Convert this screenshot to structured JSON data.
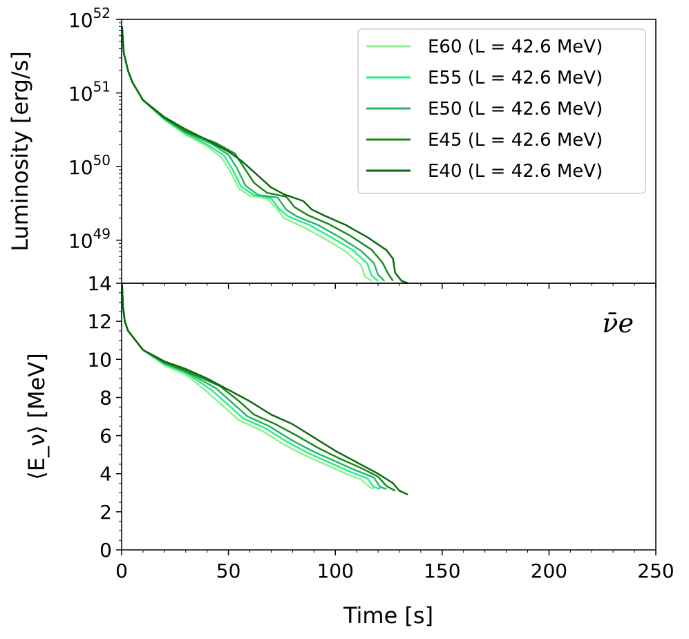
{
  "chart_data": [
    {
      "type": "line",
      "panel": "top",
      "xlabel": "",
      "ylabel": "Luminosity [erg/s]",
      "yscale": "log",
      "xlim": [
        0,
        250
      ],
      "ylim": [
        2.6e+48,
        1e+52
      ],
      "yticks": [
        {
          "base": "10",
          "exp": "52",
          "value": 1e+52
        },
        {
          "base": "10",
          "exp": "51",
          "value": 1e+51
        },
        {
          "base": "10",
          "exp": "50",
          "value": 1e+50
        },
        {
          "base": "10",
          "exp": "49",
          "value": 1e+49
        }
      ],
      "legend_position": "top-right",
      "series": [
        {
          "name": "E60 (L = 42.6 MeV)",
          "color": "#8ef08e",
          "points": [
            [
              0.2,
              8e+51
            ],
            [
              1,
              3.5e+51
            ],
            [
              3,
              2e+51
            ],
            [
              5,
              1.4e+51
            ],
            [
              10,
              8e+50
            ],
            [
              20,
              4.3e+50
            ],
            [
              30,
              2.7e+50
            ],
            [
              40,
              1.9e+50
            ],
            [
              47,
              1.3e+50
            ],
            [
              51,
              8.5e+49
            ],
            [
              55,
              5e+49
            ],
            [
              60,
              4e+49
            ],
            [
              68,
              3.7e+49
            ],
            [
              72,
              2.8e+49
            ],
            [
              76,
              2e+49
            ],
            [
              85,
              1.5e+49
            ],
            [
              95,
              1.05e+49
            ],
            [
              105,
              7e+48
            ],
            [
              112,
              4.6e+48
            ],
            [
              114,
              3.2e+48
            ],
            [
              117,
              2.8e+48
            ]
          ]
        },
        {
          "name": "E55 (L = 42.6 MeV)",
          "color": "#26ee8a",
          "points": [
            [
              0.2,
              8e+51
            ],
            [
              1,
              3.5e+51
            ],
            [
              3,
              2e+51
            ],
            [
              5,
              1.4e+51
            ],
            [
              10,
              8e+50
            ],
            [
              20,
              4.4e+50
            ],
            [
              30,
              2.8e+50
            ],
            [
              40,
              2e+50
            ],
            [
              48,
              1.4e+50
            ],
            [
              52,
              9e+49
            ],
            [
              56,
              5.3e+49
            ],
            [
              62,
              4.1e+49
            ],
            [
              70,
              3.7e+49
            ],
            [
              74,
              2.6e+49
            ],
            [
              78,
              2.1e+49
            ],
            [
              88,
              1.6e+49
            ],
            [
              98,
              1.1e+49
            ],
            [
              108,
              7.4e+48
            ],
            [
              115,
              4.8e+48
            ],
            [
              117,
              3.3e+48
            ],
            [
              120,
              2.8e+48
            ]
          ]
        },
        {
          "name": "E50 (L = 42.6 MeV)",
          "color": "#2bb36b",
          "points": [
            [
              0.2,
              8e+51
            ],
            [
              1,
              3.5e+51
            ],
            [
              3,
              2e+51
            ],
            [
              5,
              1.4e+51
            ],
            [
              10,
              8e+50
            ],
            [
              20,
              4.5e+50
            ],
            [
              30,
              2.9e+50
            ],
            [
              42,
              2.05e+50
            ],
            [
              50,
              1.45e+50
            ],
            [
              54,
              9.5e+49
            ],
            [
              58,
              5.5e+49
            ],
            [
              64,
              4.1e+49
            ],
            [
              73,
              3.8e+49
            ],
            [
              77,
              2.6e+49
            ],
            [
              82,
              2.1e+49
            ],
            [
              92,
              1.6e+49
            ],
            [
              102,
              1.1e+49
            ],
            [
              112,
              7.2e+48
            ],
            [
              118,
              4.9e+48
            ],
            [
              120,
              3.4e+48
            ],
            [
              123,
              2.8e+48
            ]
          ]
        },
        {
          "name": "E45 (L = 42.6 MeV)",
          "color": "#1a8a1a",
          "points": [
            [
              0.2,
              8e+51
            ],
            [
              1,
              3.5e+51
            ],
            [
              3,
              2e+51
            ],
            [
              5,
              1.4e+51
            ],
            [
              10,
              8e+50
            ],
            [
              20,
              4.6e+50
            ],
            [
              30,
              3e+50
            ],
            [
              44,
              2.1e+50
            ],
            [
              53,
              1.5e+50
            ],
            [
              57,
              1e+50
            ],
            [
              62,
              6e+49
            ],
            [
              68,
              4.4e+49
            ],
            [
              77,
              3.9e+49
            ],
            [
              81,
              2.8e+49
            ],
            [
              87,
              2.2e+49
            ],
            [
              97,
              1.65e+49
            ],
            [
              107,
              1.15e+49
            ],
            [
              117,
              7.4e+48
            ],
            [
              122,
              5e+48
            ],
            [
              125,
              3.4e+48
            ],
            [
              127,
              2.8e+48
            ]
          ]
        },
        {
          "name": "E40 (L = 42.6 MeV)",
          "color": "#0a6a10",
          "points": [
            [
              0.2,
              8e+51
            ],
            [
              1,
              3.5e+51
            ],
            [
              3,
              2e+51
            ],
            [
              5,
              1.4e+51
            ],
            [
              10,
              8e+50
            ],
            [
              20,
              4.7e+50
            ],
            [
              30,
              3.2e+50
            ],
            [
              40,
              2.3e+50
            ],
            [
              50,
              1.6e+50
            ],
            [
              56,
              1.2e+50
            ],
            [
              60,
              9.5e+49
            ],
            [
              65,
              7e+49
            ],
            [
              70,
              5.2e+49
            ],
            [
              76,
              4.2e+49
            ],
            [
              85,
              3.4e+49
            ],
            [
              89,
              2.6e+49
            ],
            [
              95,
              2.15e+49
            ],
            [
              105,
              1.6e+49
            ],
            [
              115,
              1.1e+49
            ],
            [
              124,
              7.3e+48
            ],
            [
              127,
              5.6e+48
            ],
            [
              128,
              3.6e+48
            ],
            [
              131,
              2.8e+48
            ],
            [
              134,
              2.6e+48
            ]
          ]
        }
      ]
    },
    {
      "type": "line",
      "panel": "bottom",
      "xlabel": "Time [s]",
      "ylabel": "⟨E_ν⟩ [MeV]",
      "xlim": [
        0,
        250
      ],
      "ylim": [
        0,
        14
      ],
      "xticks": [
        0,
        50,
        100,
        150,
        200,
        250
      ],
      "yticks": [
        0,
        2,
        4,
        6,
        8,
        10,
        12,
        14
      ],
      "annotation": "ν̄e",
      "series": [
        {
          "name": "E60 (L = 42.6 MeV)",
          "color": "#8ef08e",
          "points": [
            [
              0.2,
              14
            ],
            [
              0.6,
              12.8
            ],
            [
              1.5,
              12
            ],
            [
              3,
              11.5
            ],
            [
              10,
              10.5
            ],
            [
              20,
              9.7
            ],
            [
              30,
              9.2
            ],
            [
              40,
              8.3
            ],
            [
              48,
              7.5
            ],
            [
              55,
              6.8
            ],
            [
              65,
              6.3
            ],
            [
              75,
              5.6
            ],
            [
              85,
              5
            ],
            [
              95,
              4.5
            ],
            [
              105,
              4
            ],
            [
              112,
              3.7
            ],
            [
              116,
              3.3
            ],
            [
              118,
              3.2
            ]
          ]
        },
        {
          "name": "E55 (L = 42.6 MeV)",
          "color": "#26ee8a",
          "points": [
            [
              0.2,
              14
            ],
            [
              0.6,
              12.8
            ],
            [
              1.5,
              12
            ],
            [
              3,
              11.5
            ],
            [
              10,
              10.5
            ],
            [
              20,
              9.75
            ],
            [
              30,
              9.3
            ],
            [
              42,
              8.4
            ],
            [
              50,
              7.6
            ],
            [
              57,
              6.9
            ],
            [
              67,
              6.4
            ],
            [
              77,
              5.7
            ],
            [
              87,
              5.1
            ],
            [
              97,
              4.6
            ],
            [
              107,
              4.1
            ],
            [
              115,
              3.75
            ],
            [
              118,
              3.3
            ],
            [
              121,
              3.2
            ]
          ]
        },
        {
          "name": "E50 (L = 42.6 MeV)",
          "color": "#2bb36b",
          "points": [
            [
              0.2,
              14
            ],
            [
              0.6,
              12.8
            ],
            [
              1.5,
              12
            ],
            [
              3,
              11.5
            ],
            [
              10,
              10.5
            ],
            [
              20,
              9.8
            ],
            [
              30,
              9.35
            ],
            [
              44,
              8.5
            ],
            [
              52,
              7.7
            ],
            [
              59,
              7
            ],
            [
              69,
              6.5
            ],
            [
              79,
              5.8
            ],
            [
              89,
              5.2
            ],
            [
              99,
              4.7
            ],
            [
              109,
              4.2
            ],
            [
              118,
              3.8
            ],
            [
              121,
              3.3
            ],
            [
              124,
              3.2
            ]
          ]
        },
        {
          "name": "E45 (L = 42.6 MeV)",
          "color": "#1a8a1a",
          "points": [
            [
              0.2,
              14
            ],
            [
              0.6,
              12.8
            ],
            [
              1.5,
              12
            ],
            [
              3,
              11.5
            ],
            [
              10,
              10.5
            ],
            [
              20,
              9.85
            ],
            [
              30,
              9.4
            ],
            [
              46,
              8.6
            ],
            [
              55,
              7.8
            ],
            [
              62,
              7.1
            ],
            [
              72,
              6.6
            ],
            [
              82,
              6
            ],
            [
              92,
              5.35
            ],
            [
              102,
              4.8
            ],
            [
              112,
              4.3
            ],
            [
              120,
              3.85
            ],
            [
              124,
              3.35
            ],
            [
              128,
              3.1
            ]
          ]
        },
        {
          "name": "E40 (L = 42.6 MeV)",
          "color": "#0a6a10",
          "points": [
            [
              0.2,
              14
            ],
            [
              0.6,
              12.8
            ],
            [
              1.5,
              12
            ],
            [
              3,
              11.5
            ],
            [
              10,
              10.5
            ],
            [
              20,
              9.9
            ],
            [
              30,
              9.5
            ],
            [
              40,
              9
            ],
            [
              50,
              8.4
            ],
            [
              60,
              7.8
            ],
            [
              70,
              7.1
            ],
            [
              80,
              6.6
            ],
            [
              90,
              5.9
            ],
            [
              100,
              5.2
            ],
            [
              110,
              4.6
            ],
            [
              120,
              4
            ],
            [
              127,
              3.5
            ],
            [
              130,
              3.1
            ],
            [
              134,
              2.9
            ]
          ]
        }
      ]
    }
  ]
}
